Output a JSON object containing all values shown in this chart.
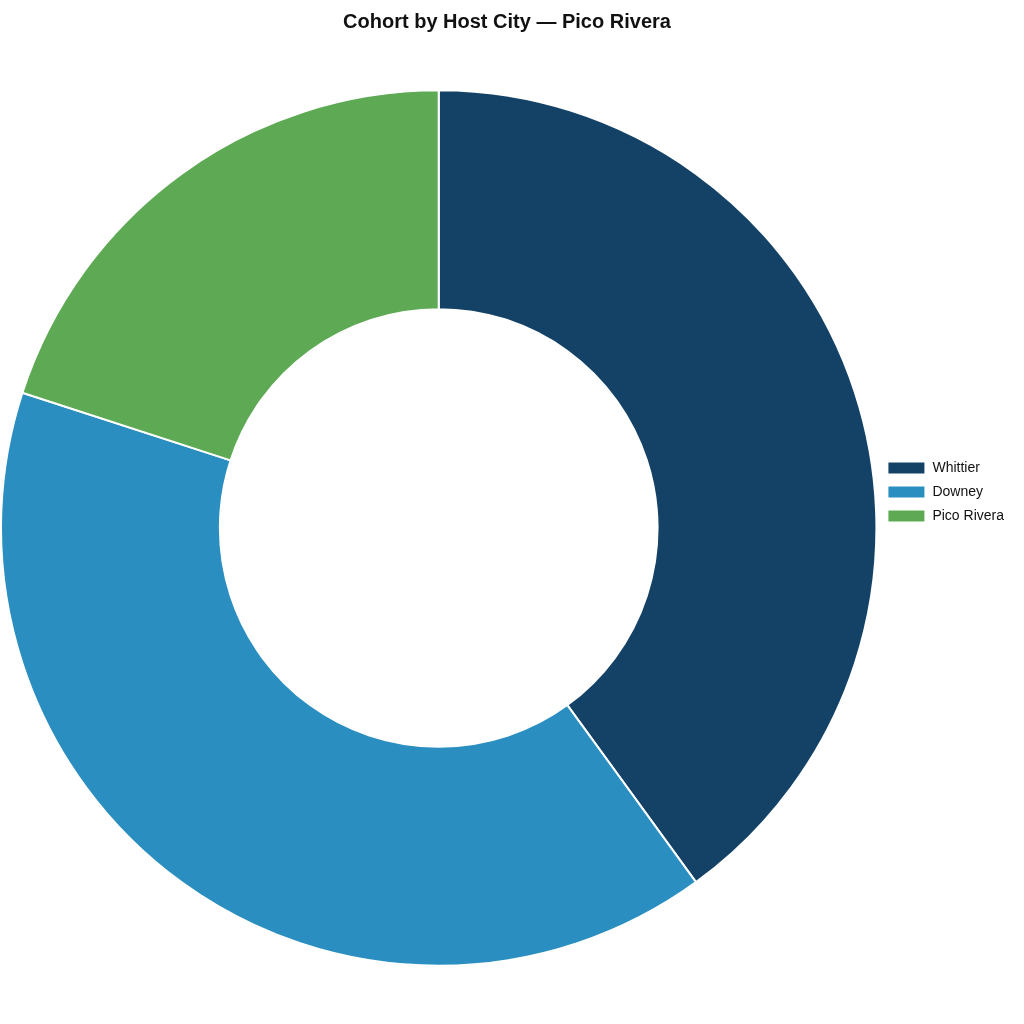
{
  "chart_data": {
    "type": "donut",
    "title": "Cohort by Host City — Pico Rivera",
    "categories": [
      "Whittier",
      "Downey",
      "Pico Rivera"
    ],
    "values": [
      40,
      40,
      20
    ],
    "colors": [
      "#134266",
      "#2a8ec1",
      "#5eaa54"
    ],
    "legend": "right"
  }
}
